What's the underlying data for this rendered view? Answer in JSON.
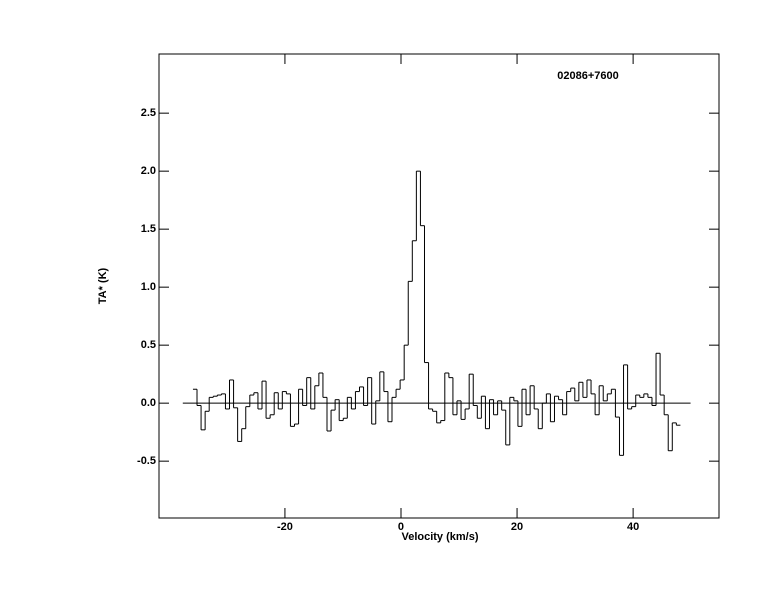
{
  "chart_data": {
    "type": "step",
    "title": "02086+7600",
    "x_label": "Velocity (km/s)",
    "y_label": "TA* (K)",
    "color": "#000000",
    "xlim": [
      -41.7,
      54.8
    ],
    "ylim": [
      -0.99,
      3.01
    ],
    "xticks": [
      -20,
      0,
      20,
      40
    ],
    "yticks": [
      -0.5,
      {
        "value": 0,
        "label": "0.0"
      },
      0.5,
      {
        "value": 1,
        "label": "1.0"
      },
      1.5,
      {
        "value": 2,
        "label": "2.0"
      },
      2.5
    ],
    "x": [
      -35.5,
      -34.8,
      -34.1,
      -33.4,
      -32.7,
      -32,
      -31.3,
      -30.6,
      -29.9,
      -29.2,
      -28.5,
      -27.8,
      -27.1,
      -26.4,
      -25.7,
      -25,
      -24.3,
      -23.6,
      -22.9,
      -22.2,
      -21.5,
      -20.8,
      -20.1,
      -19.4,
      -18.7,
      -18,
      -17.3,
      -16.6,
      -15.9,
      -15.2,
      -14.5,
      -13.8,
      -13.1,
      -12.4,
      -11.7,
      -11,
      -10.3,
      -9.6,
      -8.9,
      -8.2,
      -7.5,
      -6.8,
      -6.1,
      -5.4,
      -4.7,
      -4,
      -3.3,
      -2.6,
      -1.9,
      -1.2,
      -0.5,
      0.2,
      0.9,
      1.6,
      2.3,
      3,
      3.7,
      4.4,
      5.1,
      5.8,
      6.5,
      7.2,
      7.9,
      8.6,
      9.3,
      10,
      10.7,
      11.4,
      12.1,
      12.8,
      13.5,
      14.2,
      14.9,
      15.6,
      16.3,
      17,
      17.7,
      18.4,
      19.1,
      19.8,
      20.5,
      21.2,
      21.9,
      22.6,
      23.3,
      24,
      24.7,
      25.4,
      26.1,
      26.8,
      27.5,
      28.2,
      28.9,
      29.6,
      30.3,
      31,
      31.7,
      32.4,
      33.1,
      33.8,
      34.5,
      35.2,
      35.9,
      36.6,
      37.3,
      38,
      38.7,
      39.4,
      40.1,
      40.8,
      41.5,
      42.2,
      42.9,
      43.6,
      44.3,
      45,
      45.7,
      46.4,
      47.1,
      47.8
    ],
    "values": [
      0.12,
      -0.02,
      -0.23,
      -0.07,
      0.05,
      0.06,
      0.07,
      0.08,
      -0.05,
      0.2,
      -0.04,
      -0.33,
      -0.22,
      -0.03,
      0.07,
      0.09,
      -0.05,
      0.19,
      -0.13,
      -0.1,
      0.09,
      -0.05,
      0.1,
      0.08,
      -0.2,
      -0.18,
      0.12,
      -0.02,
      0.22,
      -0.05,
      0.15,
      0.26,
      0.05,
      -0.24,
      -0.06,
      0.03,
      -0.15,
      -0.13,
      0.05,
      -0.05,
      0.1,
      0.14,
      -0.02,
      0.22,
      -0.18,
      0.02,
      0.27,
      0.1,
      -0.16,
      0.05,
      0.12,
      0.2,
      0.5,
      1.05,
      1.4,
      2.0,
      1.53,
      0.35,
      -0.05,
      -0.07,
      -0.17,
      -0.15,
      0.26,
      0.22,
      -0.1,
      0.02,
      -0.14,
      -0.05,
      0.25,
      -0.02,
      -0.13,
      0.06,
      -0.22,
      0.03,
      -0.1,
      0.02,
      -0.06,
      -0.36,
      0.05,
      0.02,
      -0.2,
      0.12,
      -0.1,
      0.15,
      -0.05,
      -0.22,
      0.0,
      0.08,
      -0.16,
      0.06,
      0.03,
      -0.1,
      0.1,
      0.13,
      0.02,
      0.18,
      0.05,
      0.2,
      0.08,
      -0.1,
      0.15,
      0.02,
      0.08,
      0.12,
      -0.12,
      -0.45,
      0.33,
      -0.05,
      -0.03,
      0.07,
      0.05,
      0.08,
      0.05,
      -0.02,
      0.43,
      0.07,
      -0.1,
      -0.41,
      -0.17,
      -0.19
    ]
  }
}
